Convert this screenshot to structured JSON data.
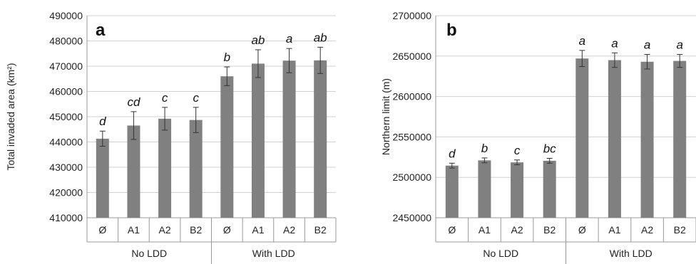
{
  "chart_data": [
    {
      "type": "bar",
      "panel_label": "a",
      "ylabel": "Total invaded area (km²)",
      "ylim": [
        410000,
        490000
      ],
      "yticks": [
        410000,
        420000,
        430000,
        440000,
        450000,
        460000,
        470000,
        480000,
        490000
      ],
      "categories": [
        "Ø",
        "A1",
        "A2",
        "B2",
        "Ø",
        "A1",
        "A2",
        "B2"
      ],
      "groups": [
        {
          "label": "No LDD",
          "count": 4
        },
        {
          "label": "With LDD",
          "count": 4
        }
      ],
      "values": [
        441300,
        446500,
        449200,
        448700,
        466000,
        471000,
        472200,
        472300
      ],
      "errors": [
        3000,
        5500,
        4500,
        5000,
        3700,
        5500,
        4800,
        5200
      ],
      "sig_labels": [
        "d",
        "cd",
        "c",
        "c",
        "b",
        "ab",
        "a",
        "ab"
      ],
      "bar_color": "#808080",
      "grid": "horizontal"
    },
    {
      "type": "bar",
      "panel_label": "b",
      "ylabel": "Northern limit (m)",
      "ylim": [
        2450000,
        2700000
      ],
      "yticks": [
        2450000,
        2500000,
        2550000,
        2600000,
        2650000,
        2700000
      ],
      "categories": [
        "Ø",
        "A1",
        "A2",
        "B2",
        "Ø",
        "A1",
        "A2",
        "B2"
      ],
      "groups": [
        {
          "label": "No LDD",
          "count": 4
        },
        {
          "label": "With LDD",
          "count": 4
        }
      ],
      "values": [
        2514500,
        2521000,
        2518500,
        2520500,
        2647000,
        2645000,
        2643000,
        2644000
      ],
      "errors": [
        3000,
        3000,
        3000,
        3000,
        10000,
        9000,
        9000,
        8000
      ],
      "sig_labels": [
        "d",
        "b",
        "c",
        "bc",
        "a",
        "a",
        "a",
        "a"
      ],
      "bar_color": "#808080",
      "grid": "horizontal"
    }
  ]
}
